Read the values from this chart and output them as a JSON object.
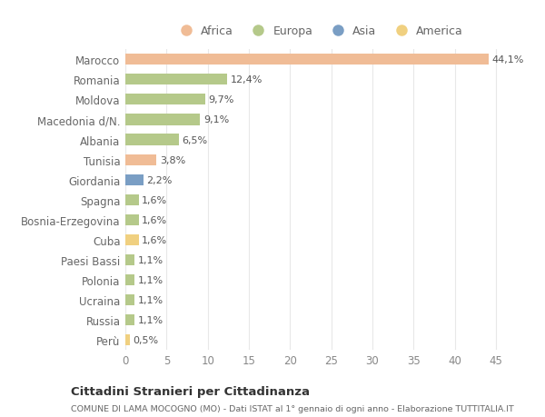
{
  "categories": [
    "Marocco",
    "Romania",
    "Moldova",
    "Macedonia d/N.",
    "Albania",
    "Tunisia",
    "Giordania",
    "Spagna",
    "Bosnia-Erzegovina",
    "Cuba",
    "Paesi Bassi",
    "Polonia",
    "Ucraina",
    "Russia",
    "Perù"
  ],
  "values": [
    44.1,
    12.4,
    9.7,
    9.1,
    6.5,
    3.8,
    2.2,
    1.6,
    1.6,
    1.6,
    1.1,
    1.1,
    1.1,
    1.1,
    0.5
  ],
  "labels": [
    "44,1%",
    "12,4%",
    "9,7%",
    "9,1%",
    "6,5%",
    "3,8%",
    "2,2%",
    "1,6%",
    "1,6%",
    "1,6%",
    "1,1%",
    "1,1%",
    "1,1%",
    "1,1%",
    "0,5%"
  ],
  "colors": [
    "#f0bc96",
    "#b5c98a",
    "#b5c98a",
    "#b5c98a",
    "#b5c98a",
    "#f0bc96",
    "#7a9ec4",
    "#b5c98a",
    "#b5c98a",
    "#f0d080",
    "#b5c98a",
    "#b5c98a",
    "#b5c98a",
    "#b5c98a",
    "#f0d080"
  ],
  "legend_labels": [
    "Africa",
    "Europa",
    "Asia",
    "America"
  ],
  "legend_colors": [
    "#f0bc96",
    "#b5c98a",
    "#7a9ec4",
    "#f0d080"
  ],
  "title": "Cittadini Stranieri per Cittadinanza",
  "subtitle": "COMUNE DI LAMA MOCOGNO (MO) - Dati ISTAT al 1° gennaio di ogni anno - Elaborazione TUTTITALIA.IT",
  "xlim": [
    0,
    47
  ],
  "xticks": [
    0,
    5,
    10,
    15,
    20,
    25,
    30,
    35,
    40,
    45
  ],
  "background_color": "#ffffff",
  "grid_color": "#e8e8e8"
}
